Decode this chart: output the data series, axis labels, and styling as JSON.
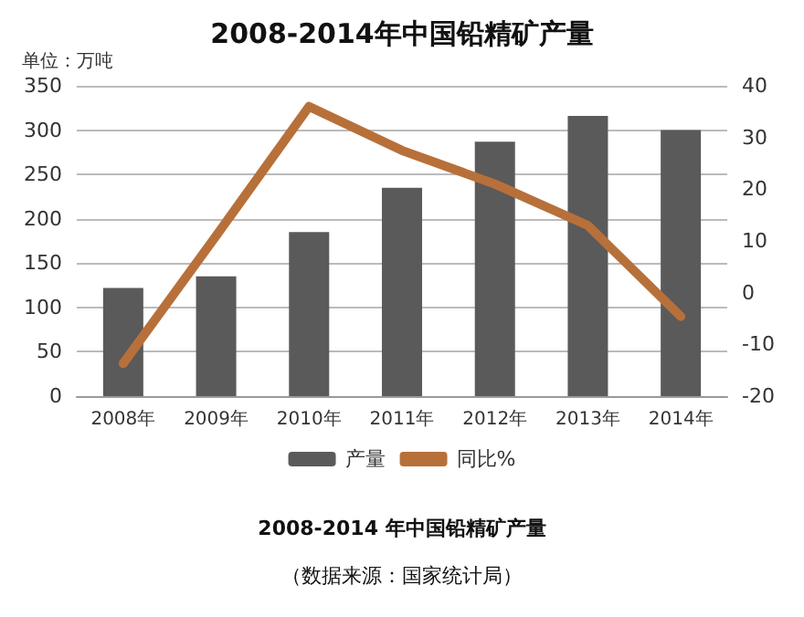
{
  "chart_data": {
    "type": "bar",
    "title": "2008-2014年中国铅精矿产量",
    "ylabel": "单位：万吨",
    "categories": [
      "2008年",
      "2009年",
      "2010年",
      "2011年",
      "2012年",
      "2013年",
      "2014年"
    ],
    "series": [
      {
        "name": "产量",
        "color": "#5a5a5a",
        "values": [
          122,
          135,
          185,
          235,
          287,
          316,
          300
        ]
      },
      {
        "name": "同比%",
        "type": "line",
        "axis": "y2",
        "color": "#b8703a",
        "values": [
          -13.7,
          11,
          36,
          27.5,
          21,
          13,
          -4.6
        ]
      }
    ],
    "ylim": [
      0,
      350
    ],
    "yticks": [
      0,
      50,
      100,
      150,
      200,
      250,
      300,
      350
    ],
    "y2lim": [
      -20,
      40
    ],
    "y2ticks": [
      -20,
      -10,
      0,
      10,
      20,
      30,
      40
    ],
    "grid": "y",
    "legend": "bottom",
    "marker": "none",
    "line_style": "solid",
    "annotations": [
      "2008-2014 年中国铅精矿产量",
      "（数据来源：国家统计局）"
    ]
  }
}
